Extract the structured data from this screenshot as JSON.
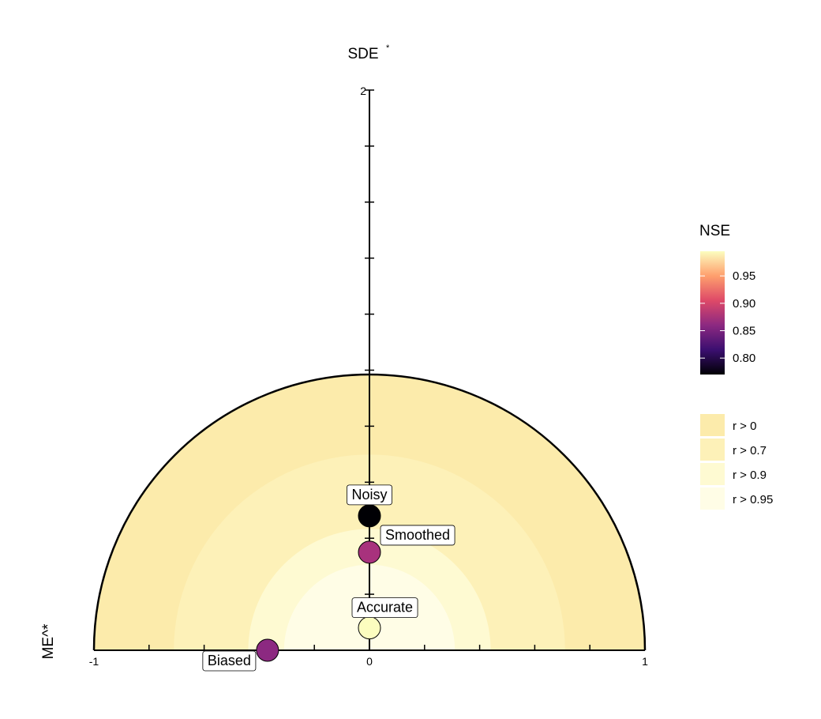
{
  "chart_data": {
    "type": "scatter",
    "title": "",
    "xlabel": "ME^*",
    "ylabel": "SDE",
    "ylabel_sup": "*",
    "xlim": [
      -1,
      1
    ],
    "ylim": [
      0,
      2
    ],
    "x_ticks": [
      -1,
      0,
      1
    ],
    "y_ticks": [
      2
    ],
    "grid": false,
    "points": [
      {
        "label": "Noisy",
        "x": 0.0,
        "y": 0.48,
        "nse": 0.77,
        "color": "#000004"
      },
      {
        "label": "Smoothed",
        "x": 0.0,
        "y": 0.35,
        "nse": 0.88,
        "color": "#a8327d"
      },
      {
        "label": "Accurate",
        "x": 0.0,
        "y": 0.08,
        "nse": 0.99,
        "color": "#fcfdbf"
      },
      {
        "label": "Biased",
        "x": -0.37,
        "y": 0.0,
        "nse": 0.87,
        "color": "#8c2981"
      }
    ],
    "zones": [
      {
        "label": "r > 0",
        "radius": 1.0,
        "color": "#fcebab"
      },
      {
        "label": "r > 0.7",
        "radius": 0.71,
        "color": "#fdf1b8"
      },
      {
        "label": "r > 0.9",
        "radius": 0.44,
        "color": "#fefad2"
      },
      {
        "label": "r > 0.95",
        "radius": 0.31,
        "color": "#fffde6"
      }
    ],
    "colorbar": {
      "title": "NSE",
      "ticks": [
        "0.95",
        "0.90",
        "0.85",
        "0.80"
      ],
      "tick_values": [
        0.95,
        0.9,
        0.85,
        0.8
      ],
      "range": [
        0.77,
        0.995
      ]
    },
    "legend_position": "right"
  }
}
